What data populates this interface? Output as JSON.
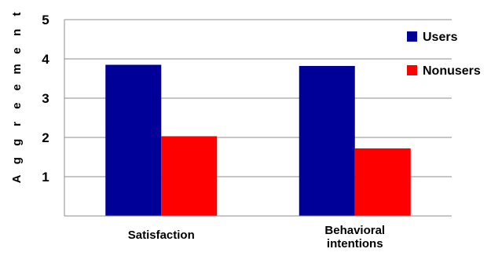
{
  "chart_data": {
    "type": "bar",
    "title": "",
    "xlabel": "",
    "ylabel": "Aggreement",
    "categories": [
      [
        "Satisfaction"
      ],
      [
        "Behavioral",
        "intentions"
      ]
    ],
    "series": [
      {
        "name": "Users",
        "color": "#000099",
        "values": [
          3.85,
          3.82
        ]
      },
      {
        "name": "Nonusers",
        "color": "#ff0000",
        "values": [
          2.03,
          1.72
        ]
      }
    ],
    "ylim": [
      0,
      5
    ],
    "yticks": [
      1,
      2,
      3,
      4,
      5
    ],
    "grid": true,
    "legend": "top-right"
  }
}
